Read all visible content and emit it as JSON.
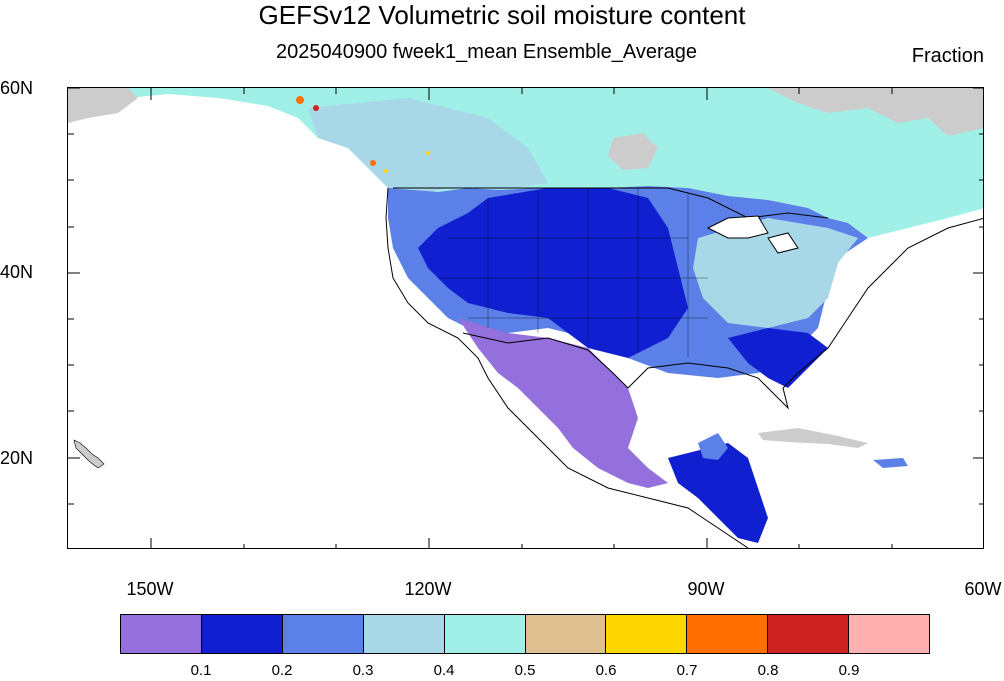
{
  "title": "GEFSv12 Volumetric soil moisture content",
  "subtitle": "2025040900 fweek1_mean Ensemble_Average",
  "units": "Fraction",
  "lat_labels": [
    "60N",
    "40N",
    "20N"
  ],
  "lon_labels": [
    "150W",
    "120W",
    "90W",
    "60W"
  ],
  "colorbar": {
    "colors": [
      "#9370db",
      "#1020d0",
      "#5b80e8",
      "#a8d8e8",
      "#a0f0e8",
      "#e0c090",
      "#ffd700",
      "#ff7000",
      "#cc2222",
      "#ffb0b0"
    ],
    "labels": [
      "0.1",
      "0.2",
      "0.3",
      "0.4",
      "0.5",
      "0.6",
      "0.7",
      "0.8",
      "0.9"
    ]
  },
  "colors": {
    "ocean": "#ffffff",
    "land_missing": "#cccccc",
    "borders": "#000000"
  }
}
